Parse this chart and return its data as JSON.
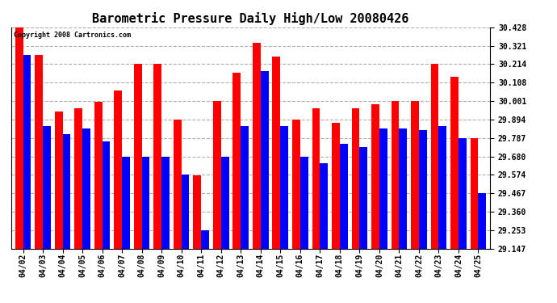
{
  "title": "Barometric Pressure Daily High/Low 20080426",
  "copyright": "Copyright 2008 Cartronics.com",
  "dates": [
    "04/02",
    "04/03",
    "04/04",
    "04/05",
    "04/06",
    "04/07",
    "04/08",
    "04/09",
    "04/10",
    "04/11",
    "04/12",
    "04/13",
    "04/14",
    "04/15",
    "04/16",
    "04/17",
    "04/18",
    "04/19",
    "04/20",
    "04/21",
    "04/22",
    "04/23",
    "04/24",
    "04/25"
  ],
  "highs": [
    30.428,
    30.267,
    29.94,
    29.96,
    29.994,
    30.06,
    30.214,
    30.214,
    29.894,
    29.57,
    30.001,
    30.167,
    30.34,
    30.257,
    29.894,
    29.96,
    29.874,
    29.96,
    29.98,
    30.001,
    30.001,
    30.214,
    30.14,
    29.787
  ],
  "lows": [
    30.267,
    29.854,
    29.807,
    29.84,
    29.767,
    29.68,
    29.68,
    29.68,
    29.574,
    29.253,
    29.68,
    29.854,
    30.174,
    29.854,
    29.68,
    29.64,
    29.754,
    29.734,
    29.84,
    29.84,
    29.834,
    29.854,
    29.787,
    29.467
  ],
  "ylim_min": 29.147,
  "ylim_max": 30.428,
  "yticks": [
    29.147,
    29.253,
    29.36,
    29.467,
    29.574,
    29.68,
    29.787,
    29.894,
    30.001,
    30.108,
    30.214,
    30.321,
    30.428
  ],
  "high_color": "#ff0000",
  "low_color": "#0000ff",
  "bg_color": "#ffffff",
  "grid_color": "#b0b0b0",
  "bar_width": 0.4,
  "title_fontsize": 11,
  "tick_fontsize": 7,
  "copyright_fontsize": 6
}
